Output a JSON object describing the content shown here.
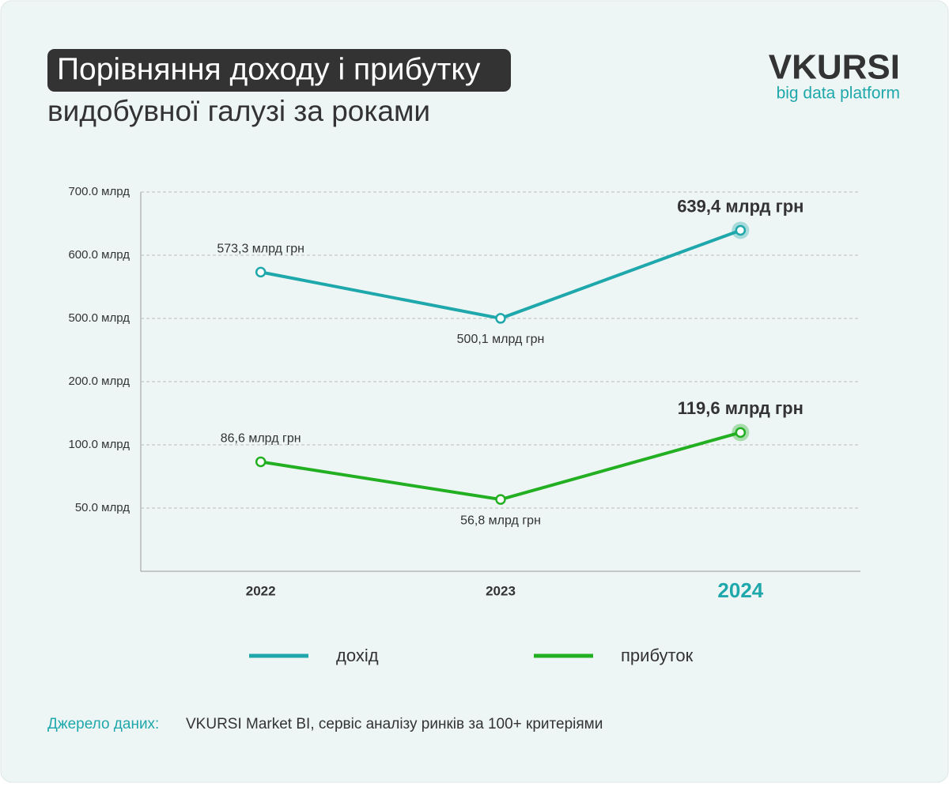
{
  "header": {
    "title_line1": "Порівняння доходу і прибутку",
    "title_line2": "видобувної галузі за роками",
    "logo": "VKURSI",
    "logo_sub": "big data platform"
  },
  "chart_data": {
    "type": "line",
    "categories": [
      "2022",
      "2023",
      "2024"
    ],
    "series": [
      {
        "name": "дохід",
        "color": "#1fa8ab",
        "values": [
          573.3,
          500.1,
          639.4
        ],
        "value_labels": [
          "573,3 млрд грн",
          "500,1 млрд грн",
          "639,4 млрд грн"
        ]
      },
      {
        "name": "прибуток",
        "color": "#22b022",
        "values": [
          86.6,
          56.8,
          119.6
        ],
        "value_labels": [
          "86,6 млрд грн",
          "56,8 млрд грн",
          "119,6 млрд грн"
        ]
      }
    ],
    "ylim": [
      0,
      700
    ],
    "yticks": [
      {
        "value": 50,
        "label": "50.0 млрд"
      },
      {
        "value": 100,
        "label": "100.0 млрд"
      },
      {
        "value": 200,
        "label": "200.0 млрд"
      },
      {
        "value": 500,
        "label": "500.0 млрд"
      },
      {
        "value": 600,
        "label": "600.0 млрд"
      },
      {
        "value": 700,
        "label": "700.0 млрд"
      }
    ],
    "grid": true
  },
  "footer": {
    "source_label": "Джерело даних:",
    "source_text": "VKURSI Market BI, сервіс аналізу ринків за 100+ критеріями"
  }
}
